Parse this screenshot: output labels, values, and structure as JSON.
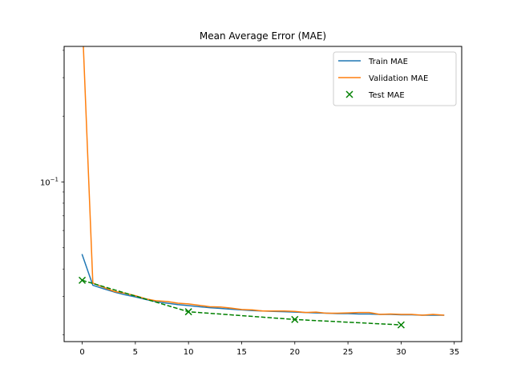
{
  "chart_data": {
    "type": "line",
    "title": "Mean Average Error (MAE)",
    "xlabel": "",
    "ylabel": "",
    "xlim": [
      -1.7,
      35.7
    ],
    "ylim_log10": [
      -1.73,
      -0.38
    ],
    "yscale": "log",
    "grid": false,
    "legend_position": "top-right",
    "xticks": [
      0,
      5,
      10,
      15,
      20,
      25,
      30,
      35
    ],
    "xtick_labels": [
      "0",
      "5",
      "10",
      "15",
      "20",
      "25",
      "30",
      "35"
    ],
    "yticks": [
      {
        "base": "10",
        "exp": "−1",
        "value": 0.1
      }
    ],
    "series": [
      {
        "name": "Train MAE",
        "kind": "line",
        "color": "#1f77b4",
        "x": [
          0,
          1,
          2,
          3,
          4,
          5,
          6,
          7,
          8,
          9,
          10,
          11,
          12,
          13,
          14,
          15,
          16,
          17,
          18,
          19,
          20,
          21,
          22,
          23,
          24,
          25,
          26,
          27,
          28,
          29,
          30,
          31,
          32,
          33,
          34
        ],
        "y": [
          0.0465,
          0.0337,
          0.0325,
          0.0314,
          0.0305,
          0.0298,
          0.029,
          0.0283,
          0.0279,
          0.0275,
          0.0272,
          0.0269,
          0.0266,
          0.0264,
          0.0262,
          0.026,
          0.0258,
          0.0257,
          0.0256,
          0.0255,
          0.0254,
          0.0253,
          0.0252,
          0.0251,
          0.025,
          0.025,
          0.0249,
          0.0249,
          0.0248,
          0.0248,
          0.0247,
          0.0247,
          0.0246,
          0.0246,
          0.0246
        ]
      },
      {
        "name": "Validation MAE",
        "kind": "line",
        "color": "#ff7f0e",
        "x": [
          0,
          1,
          2,
          3,
          4,
          5,
          6,
          7,
          8,
          9,
          10,
          11,
          12,
          13,
          14,
          15,
          16,
          17,
          18,
          19,
          20,
          21,
          22,
          23,
          24,
          25,
          26,
          27,
          28,
          29,
          30,
          31,
          32,
          33,
          34
        ],
        "y": [
          0.565,
          0.0345,
          0.033,
          0.0316,
          0.031,
          0.0302,
          0.0292,
          0.0286,
          0.0284,
          0.0279,
          0.0277,
          0.0273,
          0.0269,
          0.0268,
          0.0265,
          0.0261,
          0.026,
          0.0257,
          0.0257,
          0.0257,
          0.0256,
          0.0253,
          0.0254,
          0.0251,
          0.0251,
          0.0252,
          0.0253,
          0.0253,
          0.0248,
          0.0249,
          0.0248,
          0.0248,
          0.0246,
          0.0248,
          0.0246
        ]
      },
      {
        "name": "Test MAE",
        "kind": "scatter+dashed",
        "color": "#008000",
        "marker": "x",
        "x": [
          0,
          10,
          20,
          30
        ],
        "y": [
          0.0355,
          0.0255,
          0.0235,
          0.0222
        ]
      }
    ]
  }
}
